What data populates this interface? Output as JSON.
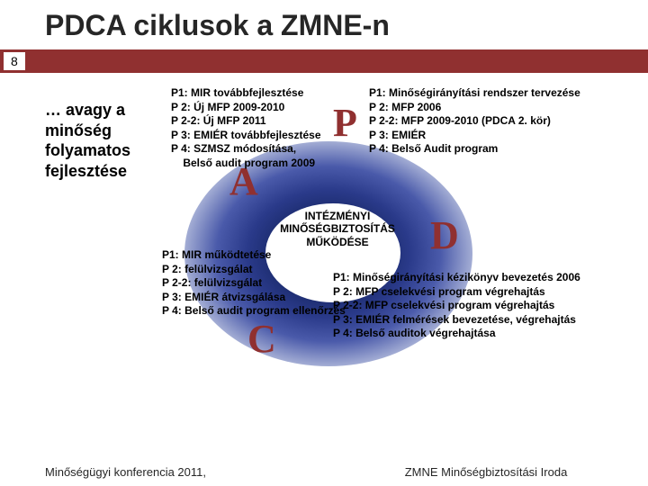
{
  "title": "PDCA ciklusok a ZMNE-n",
  "page_number": "8",
  "subtitle": "… avagy a minőség folyamatos fejlesztése",
  "colors": {
    "band": "#903030",
    "letter": "#903030",
    "ellipse_dark": "#0a1a4a",
    "ellipse_light": "#bcc4e0"
  },
  "letters": {
    "P": "P",
    "D": "D",
    "C": "C",
    "A": "A"
  },
  "center": {
    "l1": "INTÉZMÉNYI",
    "l2": "MINŐSÉGBIZTOSÍTÁS",
    "l3": "MŰKÖDÉSE"
  },
  "p_left": {
    "l1": "P1: MIR továbbfejlesztése",
    "l2": "P 2: Új MFP 2009-2010",
    "l3": "P 2-2: Új MFP 2011",
    "l4": "P 3: EMIÉR továbbfejlesztése",
    "l5": "P 4: SZMSZ módosítása,",
    "l6": "    Belső audit program 2009"
  },
  "p_right": {
    "l1": "P1: Minőségirányítási rendszer tervezése",
    "l2": "P 2: MFP 2006",
    "l3": "P 2-2: MFP 2009-2010 (PDCA 2. kör)",
    "l4": "P 3: EMIÉR",
    "l5": "P 4: Belső Audit program"
  },
  "c_block": {
    "l1": "P1: MIR működtetése",
    "l2": "P 2: felülvizsgálat",
    "l3": "P 2-2: felülvizsgálat",
    "l4": "P 3: EMIÉR átvizsgálása",
    "l5": "P 4: Belső audit program ellenőrzés"
  },
  "d_block": {
    "l1": "P1: Minőségirányítási kézikönyv bevezetés 2006",
    "l2": "P 2:  MFP cselekvési program végrehajtás",
    "l3": "P 2-2: MFP cselekvési program  végrehajtás",
    "l4": "P 3: EMIÉR felmérések bevezetése, végrehajtás",
    "l5": "P 4: Belső auditok végrehajtása"
  },
  "footer": {
    "left": "Minőségügyi konferencia 2011,",
    "right": "ZMNE Minőségbiztosítási Iroda"
  }
}
